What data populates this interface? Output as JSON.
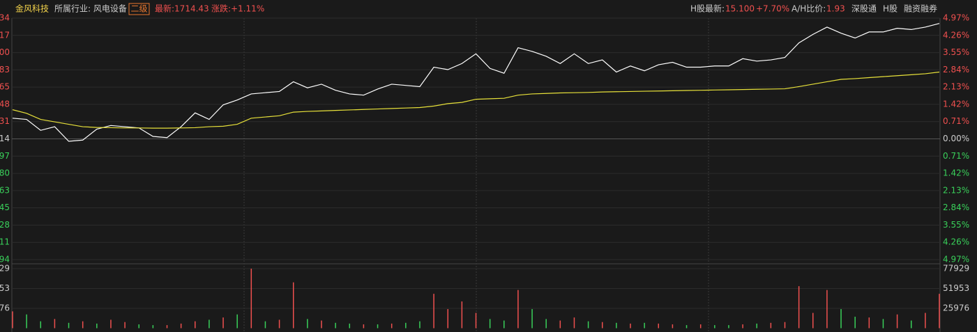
{
  "header": {
    "name": "金风科技",
    "industry": "所属行业: 风电设备",
    "level": "二级",
    "latest": "最新:1714.43",
    "change": "涨跌:+1.11%",
    "h_latest_label": "H股最新:",
    "h_price": "15.100",
    "h_change": "+7.70%",
    "ah_label": "A/H比价:",
    "ah_value": "1.93",
    "link1": "深股通",
    "link2": "H股",
    "link3": "融资融券"
  },
  "chart_data": [
    {
      "type": "line",
      "ylim": [
        -4.97,
        4.97
      ],
      "yticks": [
        {
          "value": 4.97,
          "label": "4.97%"
        },
        {
          "value": 4.26,
          "label": "4.26%"
        },
        {
          "value": 3.55,
          "label": "3.55%"
        },
        {
          "value": 2.84,
          "label": "2.84%"
        },
        {
          "value": 2.13,
          "label": "2.13%"
        },
        {
          "value": 1.42,
          "label": "1.42%"
        },
        {
          "value": 0.71,
          "label": "0.71%"
        },
        {
          "value": 0,
          "label": "0.00%"
        },
        {
          "value": -0.71,
          "label": "0.71%"
        },
        {
          "value": -1.42,
          "label": "1.42%"
        },
        {
          "value": -2.13,
          "label": "2.13%"
        },
        {
          "value": -2.84,
          "label": "2.84%"
        },
        {
          "value": -3.55,
          "label": "3.55%"
        },
        {
          "value": -4.26,
          "label": "4.26%"
        },
        {
          "value": -4.97,
          "label": "4.97%"
        }
      ],
      "left_labels": [
        "34",
        "17",
        "00",
        "83",
        "65",
        "48",
        "31",
        "14",
        "97",
        "80",
        "63",
        "45",
        "28",
        "11",
        "94"
      ],
      "up_color": "#f0504f",
      "down_color": "#39d05a",
      "flat_color": "#cccccc",
      "series": [
        {
          "color": "#ffffff",
          "values": [
            0.85,
            0.8,
            0.35,
            0.5,
            -0.1,
            -0.05,
            0.4,
            0.55,
            0.5,
            0.45,
            0.1,
            0.05,
            0.5,
            1.07,
            0.8,
            1.4,
            1.6,
            1.85,
            1.9,
            1.95,
            2.35,
            2.1,
            2.25,
            2.0,
            1.85,
            1.8,
            2.05,
            2.25,
            2.2,
            2.15,
            2.95,
            2.85,
            3.1,
            3.5,
            2.9,
            2.7,
            3.75,
            3.6,
            3.4,
            3.1,
            3.5,
            3.1,
            3.25,
            2.75,
            3.0,
            2.8,
            3.05,
            3.15,
            2.95,
            2.95,
            3.0,
            3.0,
            3.3,
            3.2,
            3.25,
            3.35,
            3.95,
            4.3,
            4.6,
            4.35,
            4.15,
            4.4,
            4.4,
            4.55,
            4.5,
            4.6,
            4.75
          ]
        },
        {
          "color": "#e8e23a",
          "values": [
            1.2,
            1.05,
            0.8,
            0.7,
            0.6,
            0.5,
            0.47,
            0.46,
            0.45,
            0.45,
            0.44,
            0.44,
            0.45,
            0.46,
            0.5,
            0.52,
            0.6,
            0.85,
            0.9,
            0.95,
            1.1,
            1.13,
            1.15,
            1.17,
            1.19,
            1.21,
            1.23,
            1.25,
            1.27,
            1.29,
            1.35,
            1.45,
            1.5,
            1.63,
            1.65,
            1.67,
            1.8,
            1.85,
            1.87,
            1.89,
            1.9,
            1.91,
            1.93,
            1.94,
            1.95,
            1.96,
            1.97,
            1.98,
            1.99,
            2.0,
            2.01,
            2.02,
            2.03,
            2.04,
            2.05,
            2.06,
            2.15,
            2.25,
            2.35,
            2.45,
            2.48,
            2.52,
            2.56,
            2.6,
            2.64,
            2.68,
            2.75
          ]
        }
      ]
    },
    {
      "type": "bar",
      "ylim": [
        0,
        77929
      ],
      "yticks": [
        77929,
        51953,
        25976
      ],
      "left_labels": [
        "29",
        "53",
        "76"
      ],
      "values": [
        22000,
        18000,
        9000,
        12000,
        7000,
        9000,
        6000,
        11000,
        8000,
        5000,
        4000,
        4000,
        6000,
        9000,
        11000,
        14000,
        18000,
        77929,
        9000,
        11000,
        60000,
        12000,
        10000,
        7000,
        6000,
        5000,
        5000,
        6000,
        7000,
        9000,
        45000,
        25000,
        35000,
        20000,
        12000,
        10000,
        50000,
        25000,
        12000,
        10000,
        14000,
        9000,
        8000,
        7000,
        6000,
        7000,
        6000,
        5000,
        4000,
        5000,
        4000,
        4000,
        5000,
        6000,
        7000,
        8000,
        55000,
        20000,
        50000,
        25000,
        15000,
        14000,
        12000,
        18000,
        10000,
        20000,
        45000
      ],
      "colors": [
        "#f0504f",
        "#39d05a",
        "#39d05a",
        "#f0504f",
        "#39d05a",
        "#f0504f",
        "#39d05a",
        "#f0504f",
        "#f0504f",
        "#39d05a",
        "#39d05a",
        "#f0504f",
        "#f0504f",
        "#f0504f",
        "#39d05a",
        "#f0504f",
        "#39d05a",
        "#f0504f",
        "#39d05a",
        "#f0504f",
        "#f0504f",
        "#39d05a",
        "#f0504f",
        "#39d05a",
        "#39d05a",
        "#f0504f",
        "#39d05a",
        "#f0504f",
        "#39d05a",
        "#39d05a",
        "#f0504f",
        "#f0504f",
        "#f0504f",
        "#f0504f",
        "#39d05a",
        "#39d05a",
        "#f0504f",
        "#39d05a",
        "#39d05a",
        "#f0504f",
        "#f0504f",
        "#39d05a",
        "#f0504f",
        "#39d05a",
        "#f0504f",
        "#39d05a",
        "#f0504f",
        "#f0504f",
        "#39d05a",
        "#f0504f",
        "#39d05a",
        "#39d05a",
        "#f0504f",
        "#39d05a",
        "#f0504f",
        "#f0504f",
        "#f0504f",
        "#f0504f",
        "#f0504f",
        "#39d05a",
        "#39d05a",
        "#f0504f",
        "#39d05a",
        "#f0504f",
        "#39d05a",
        "#f0504f",
        "#f0504f"
      ]
    }
  ]
}
